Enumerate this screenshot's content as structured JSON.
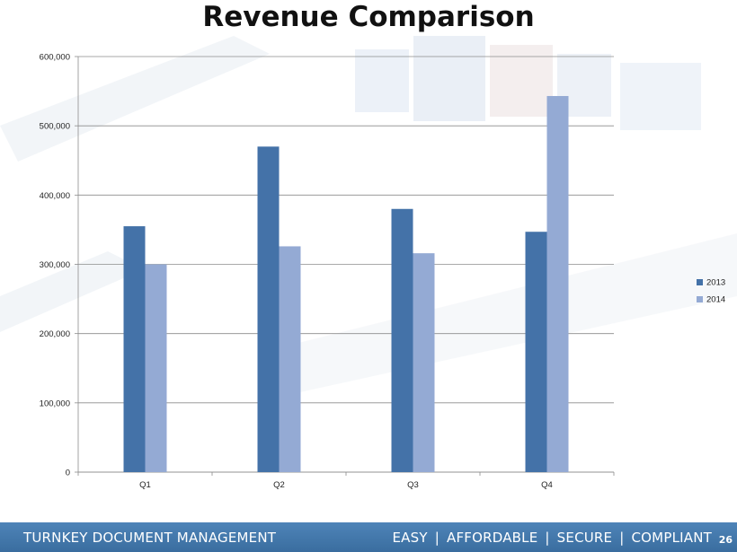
{
  "title": "Revenue Comparison",
  "footer": {
    "left": "TURNKEY DOCUMENT MANAGEMENT",
    "tagline": [
      "EASY",
      "AFFORDABLE",
      "SECURE",
      "COMPLIANT"
    ],
    "separator": "|",
    "page_number": "26"
  },
  "colors": {
    "series_2013": "#4472a8",
    "series_2014": "#94aad4",
    "footer": "#4a7fb3"
  },
  "chart_data": {
    "type": "bar",
    "title": "",
    "xlabel": "",
    "ylabel": "",
    "categories": [
      "Q1",
      "Q2",
      "Q3",
      "Q4"
    ],
    "series": [
      {
        "name": "2013",
        "values": [
          355000,
          470000,
          380000,
          347000
        ]
      },
      {
        "name": "2014",
        "values": [
          300000,
          326000,
          316000,
          543000
        ]
      }
    ],
    "ylim": [
      0,
      600000
    ],
    "yticks": [
      0,
      100000,
      200000,
      300000,
      400000,
      500000,
      600000
    ],
    "ytick_labels": [
      "0",
      "100,000",
      "200,000",
      "300,000",
      "400,000",
      "500,000",
      "600,000"
    ],
    "grid": true,
    "legend_position": "right"
  }
}
